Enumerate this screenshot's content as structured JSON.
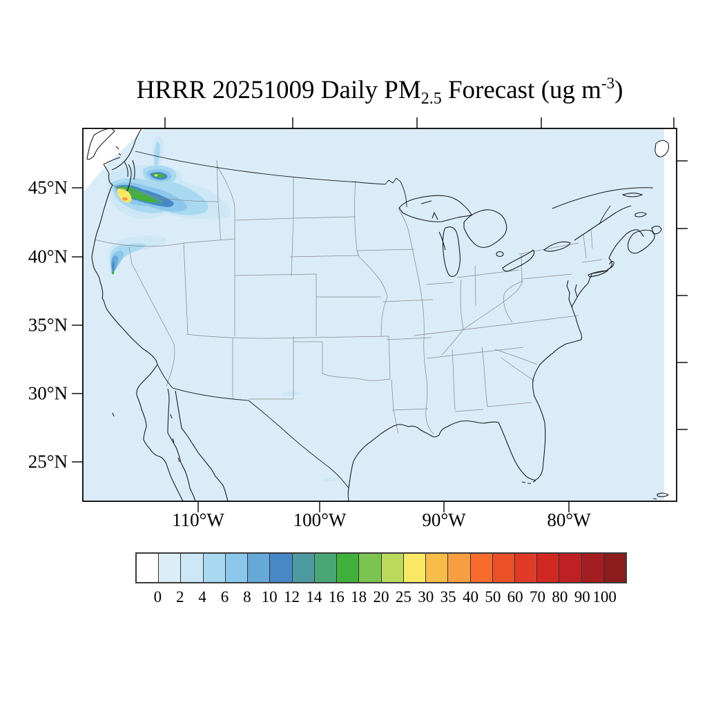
{
  "title": {
    "prefix": "HRRR 20251009 Daily PM",
    "subscript": "2.5",
    "mid": " Forecast (ug m",
    "superscript": "-3",
    "suffix": ")"
  },
  "axes": {
    "lat_labels": [
      "45°N",
      "40°N",
      "35°N",
      "30°N",
      "25°N"
    ],
    "lon_labels": [
      "110°W",
      "100°W",
      "90°W",
      "80°W"
    ]
  },
  "colorbar": {
    "labels": [
      "0",
      "2",
      "4",
      "6",
      "8",
      "10",
      "12",
      "14",
      "16",
      "18",
      "20",
      "25",
      "30",
      "35",
      "40",
      "50",
      "60",
      "70",
      "80",
      "90",
      "100"
    ],
    "colors": [
      "#ffffff",
      "#ddedf8",
      "#cee7f6",
      "#a9d9f1",
      "#8ac7ea",
      "#66a9d9",
      "#4789c6",
      "#4d9aa1",
      "#49a675",
      "#40b13b",
      "#7cc452",
      "#bdd95c",
      "#f8e864",
      "#f7bb4a",
      "#f79f40",
      "#f76c2d",
      "#ea5128",
      "#e13a27",
      "#d22823",
      "#bd2125",
      "#a31d21",
      "#8c1b1b"
    ]
  },
  "map_colors": {
    "background_field": "#d9ecf8",
    "coastline": "#1a1a1a",
    "state_border": "#8a8a8a",
    "out_of_domain": "#ffffff"
  },
  "chart_data": {
    "type": "heatmap",
    "title": "HRRR 20251009 Daily PM2.5 Forecast (ug m-3)",
    "model": "HRRR",
    "date": "20251009",
    "units": "ug m-3",
    "projection_region": "Continental United States",
    "x_ticks": [
      "110°W",
      "100°W",
      "90°W",
      "80°W"
    ],
    "y_ticks": [
      "45°N",
      "40°N",
      "35°N",
      "30°N",
      "25°N"
    ],
    "levels": [
      0,
      2,
      4,
      6,
      8,
      10,
      12,
      14,
      16,
      18,
      20,
      25,
      30,
      35,
      40,
      50,
      60,
      70,
      80,
      90,
      100
    ],
    "palette": [
      "#ffffff",
      "#ddedf8",
      "#cee7f6",
      "#a9d9f1",
      "#8ac7ea",
      "#66a9d9",
      "#4789c6",
      "#4d9aa1",
      "#49a675",
      "#40b13b",
      "#7cc452",
      "#bdd95c",
      "#f8e864",
      "#f7bb4a",
      "#f79f40",
      "#f76c2d",
      "#ea5128",
      "#e13a27",
      "#d22823",
      "#bd2125",
      "#a31d21",
      "#8c1b1b"
    ],
    "background_value_range_ug_m3": "0-2",
    "hotspots": [
      {
        "region": "northwest Oregon / Columbia River area near Pacific coast",
        "peak_value_ug_m3": "30-40",
        "note": "elongated plume extending east-southeast from the coast, yellow-orange core ringed by green and blue"
      },
      {
        "region": "south-central Washington (secondary plume)",
        "peak_value_ug_m3": "25-30",
        "note": "small green-core plume with blue halo"
      },
      {
        "region": "northeast Washington",
        "peak_value_ug_m3": "2-6",
        "note": "faint light-blue streak extending north"
      },
      {
        "region": "northern California near 40N 122W",
        "peak_value_ug_m3": "10-18",
        "note": "narrow comet-shaped plume, tail pointing south, fanning northeast"
      },
      {
        "region": "west Texas",
        "peak_value_ug_m3": "2-4",
        "note": "faint smudge"
      },
      {
        "region": "northeast Mexico gulf coast",
        "peak_value_ug_m3": "2-4",
        "note": "faint smudge"
      }
    ]
  }
}
